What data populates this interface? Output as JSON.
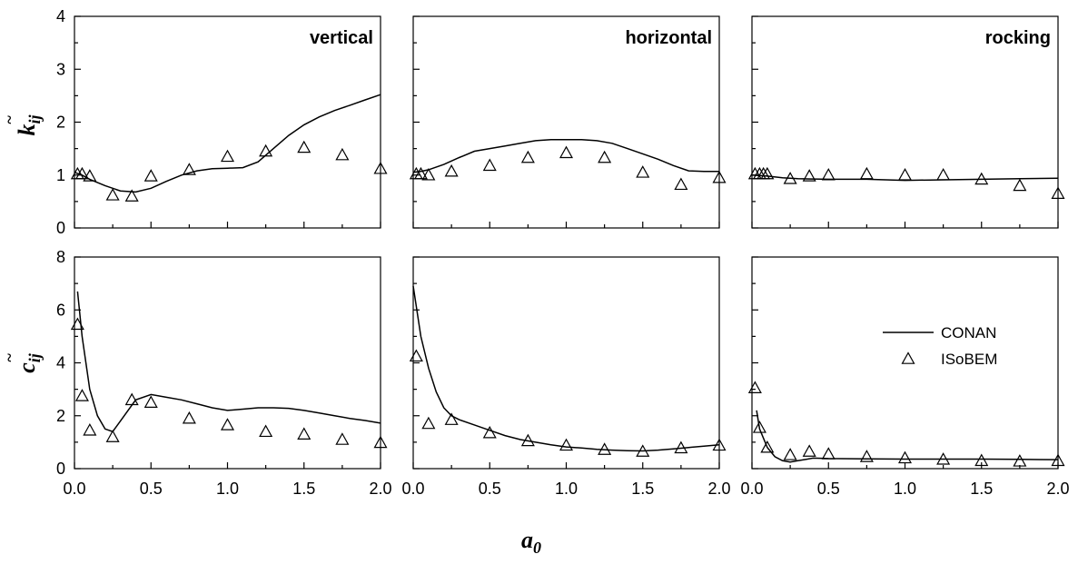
{
  "chart_data": {
    "type": "line",
    "xlabel": "a",
    "xlabel_sub": "0",
    "xlim": [
      0,
      2
    ],
    "xticks": [
      "0.0",
      "0.5",
      "1.0",
      "1.5",
      "2.0"
    ],
    "rows": [
      {
        "ylabel": "k",
        "ylabel_sub": "ij",
        "ylim": [
          0,
          4
        ],
        "yticks": [
          "0",
          "1",
          "2",
          "3",
          "4"
        ]
      },
      {
        "ylabel": "c",
        "ylabel_sub": "ij",
        "ylim": [
          0,
          8
        ],
        "yticks": [
          "0",
          "2",
          "4",
          "6",
          "8"
        ]
      }
    ],
    "legend": {
      "placement": "right",
      "entries": [
        {
          "label": "CONAN",
          "style": "line"
        },
        {
          "label": "ISoBEM",
          "style": "triangle"
        }
      ]
    },
    "panels": [
      {
        "title": "vertical",
        "row": 0,
        "col": 0,
        "line": {
          "name": "CONAN",
          "x": [
            0,
            0.05,
            0.1,
            0.2,
            0.3,
            0.4,
            0.5,
            0.6,
            0.7,
            0.8,
            0.9,
            1.0,
            1.1,
            1.2,
            1.3,
            1.4,
            1.5,
            1.6,
            1.7,
            1.8,
            1.9,
            2.0
          ],
          "y": [
            1.05,
            1.0,
            0.92,
            0.8,
            0.7,
            0.68,
            0.75,
            0.88,
            1.0,
            1.08,
            1.12,
            1.13,
            1.14,
            1.25,
            1.5,
            1.75,
            1.95,
            2.1,
            2.22,
            2.32,
            2.42,
            2.52
          ]
        },
        "markers": {
          "name": "ISoBEM",
          "x": [
            0.02,
            0.05,
            0.1,
            0.25,
            0.375,
            0.5,
            0.75,
            1.0,
            1.25,
            1.5,
            1.75,
            2.0
          ],
          "y": [
            1.02,
            1.02,
            0.98,
            0.62,
            0.6,
            0.98,
            1.1,
            1.35,
            1.45,
            1.52,
            1.38,
            1.12
          ]
        }
      },
      {
        "title": "horizontal",
        "row": 0,
        "col": 1,
        "line": {
          "name": "CONAN",
          "x": [
            0,
            0.05,
            0.1,
            0.2,
            0.3,
            0.4,
            0.5,
            0.6,
            0.7,
            0.8,
            0.9,
            1.0,
            1.1,
            1.2,
            1.3,
            1.4,
            1.5,
            1.6,
            1.7,
            1.8,
            1.9,
            2.0
          ],
          "y": [
            1.05,
            1.07,
            1.1,
            1.2,
            1.33,
            1.45,
            1.5,
            1.55,
            1.6,
            1.65,
            1.67,
            1.67,
            1.67,
            1.65,
            1.6,
            1.5,
            1.4,
            1.3,
            1.18,
            1.08,
            1.07,
            1.07
          ]
        },
        "markers": {
          "name": "ISoBEM",
          "x": [
            0.02,
            0.05,
            0.1,
            0.25,
            0.5,
            0.75,
            1.0,
            1.25,
            1.5,
            1.75,
            2.0
          ],
          "y": [
            1.02,
            1.02,
            1.0,
            1.07,
            1.18,
            1.33,
            1.42,
            1.33,
            1.05,
            0.82,
            0.95
          ]
        }
      },
      {
        "title": "rocking",
        "row": 0,
        "col": 2,
        "line": {
          "name": "CONAN",
          "x": [
            0,
            0.1,
            0.2,
            0.3,
            0.5,
            0.75,
            1.0,
            1.25,
            1.5,
            1.75,
            2.0
          ],
          "y": [
            1.0,
            0.98,
            0.95,
            0.93,
            0.92,
            0.92,
            0.9,
            0.91,
            0.92,
            0.93,
            0.94
          ]
        },
        "markers": {
          "name": "ISoBEM",
          "x": [
            0.02,
            0.05,
            0.075,
            0.1,
            0.25,
            0.375,
            0.5,
            0.75,
            1.0,
            1.25,
            1.5,
            1.75,
            2.0
          ],
          "y": [
            1.02,
            1.02,
            1.02,
            1.02,
            0.93,
            0.98,
            1.0,
            1.02,
            1.0,
            1.0,
            0.92,
            0.8,
            0.65
          ]
        }
      },
      {
        "title": "",
        "row": 1,
        "col": 0,
        "line": {
          "name": "CONAN",
          "x": [
            0.02,
            0.05,
            0.1,
            0.15,
            0.2,
            0.25,
            0.3,
            0.4,
            0.5,
            0.6,
            0.7,
            0.8,
            0.9,
            1.0,
            1.1,
            1.2,
            1.3,
            1.4,
            1.5,
            1.6,
            1.7,
            1.8,
            1.9,
            2.0
          ],
          "y": [
            6.7,
            5.0,
            3.0,
            2.0,
            1.5,
            1.4,
            1.8,
            2.6,
            2.8,
            2.7,
            2.6,
            2.45,
            2.3,
            2.2,
            2.25,
            2.3,
            2.3,
            2.28,
            2.2,
            2.1,
            2.0,
            1.9,
            1.82,
            1.72
          ]
        },
        "markers": {
          "name": "ISoBEM",
          "x": [
            0.02,
            0.05,
            0.1,
            0.25,
            0.375,
            0.5,
            0.75,
            1.0,
            1.25,
            1.5,
            1.75,
            2.0
          ],
          "y": [
            5.45,
            2.75,
            1.45,
            1.2,
            2.6,
            2.5,
            1.9,
            1.65,
            1.4,
            1.3,
            1.1,
            0.98
          ]
        }
      },
      {
        "title": "",
        "row": 1,
        "col": 1,
        "line": {
          "name": "CONAN",
          "x": [
            0.0,
            0.05,
            0.1,
            0.15,
            0.2,
            0.25,
            0.3,
            0.4,
            0.5,
            0.6,
            0.7,
            0.8,
            0.9,
            1.0,
            1.1,
            1.2,
            1.3,
            1.4,
            1.5,
            1.6,
            1.7,
            1.8,
            1.9,
            2.0
          ],
          "y": [
            6.9,
            5.0,
            3.8,
            2.9,
            2.3,
            2.0,
            1.85,
            1.65,
            1.45,
            1.25,
            1.1,
            1.0,
            0.9,
            0.82,
            0.78,
            0.73,
            0.7,
            0.68,
            0.67,
            0.7,
            0.75,
            0.8,
            0.85,
            0.9
          ]
        },
        "markers": {
          "name": "ISoBEM",
          "x": [
            0.02,
            0.1,
            0.25,
            0.5,
            0.75,
            1.0,
            1.25,
            1.5,
            1.75,
            2.0
          ],
          "y": [
            4.25,
            1.7,
            1.85,
            1.35,
            1.05,
            0.88,
            0.72,
            0.65,
            0.78,
            0.88
          ]
        }
      },
      {
        "title": "",
        "row": 1,
        "col": 2,
        "line": {
          "name": "CONAN",
          "x": [
            0.03,
            0.05,
            0.1,
            0.15,
            0.2,
            0.25,
            0.3,
            0.4,
            0.5,
            0.75,
            1.0,
            1.25,
            1.5,
            1.75,
            2.0
          ],
          "y": [
            2.2,
            1.5,
            0.8,
            0.45,
            0.3,
            0.25,
            0.3,
            0.4,
            0.38,
            0.37,
            0.36,
            0.36,
            0.36,
            0.35,
            0.34
          ]
        },
        "markers": {
          "name": "ISoBEM",
          "x": [
            0.02,
            0.05,
            0.1,
            0.25,
            0.375,
            0.5,
            0.75,
            1.0,
            1.25,
            1.5,
            1.75,
            2.0
          ],
          "y": [
            3.05,
            1.55,
            0.8,
            0.52,
            0.65,
            0.55,
            0.45,
            0.4,
            0.35,
            0.3,
            0.28,
            0.3
          ]
        }
      }
    ]
  }
}
